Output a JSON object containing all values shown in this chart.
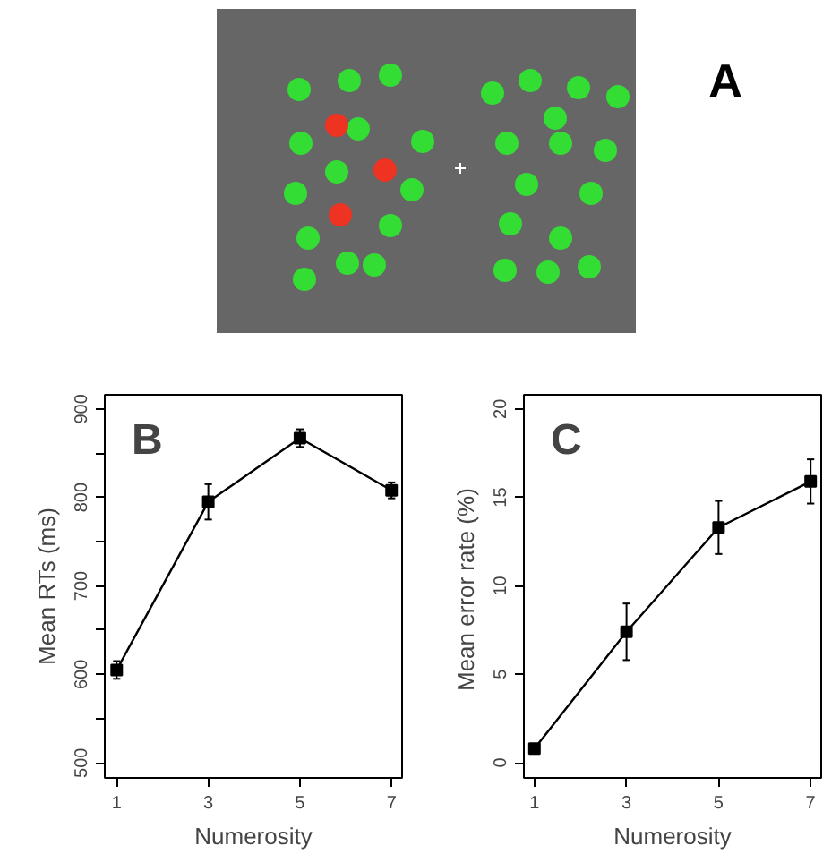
{
  "chart_data": [
    {
      "type": "other",
      "title": "A"
    },
    {
      "type": "line",
      "title": "B",
      "xlabel": "Numerosity",
      "ylabel": "Mean RTs (ms)",
      "x": [
        1,
        3,
        5,
        7
      ],
      "series": [
        {
          "color": "#000000",
          "values": [
            605,
            795,
            867,
            808
          ],
          "errors": [
            10,
            20,
            10,
            9
          ]
        }
      ],
      "xlim": [
        0.74,
        7.23
      ],
      "ylim": [
        483,
        916
      ],
      "xticks": [
        1,
        3,
        5,
        7
      ],
      "yticks": [
        500,
        {
          "value": 550,
          "label": null
        },
        600,
        {
          "value": 650,
          "label": null
        },
        700,
        {
          "value": 750,
          "label": null
        },
        800,
        {
          "value": 850,
          "label": null
        },
        900
      ],
      "marker": "square",
      "line_style": "solid",
      "grid": false
    },
    {
      "type": "line",
      "title": "C",
      "xlabel": "Numerosity",
      "ylabel": "Mean error rate  (%)",
      "x": [
        1,
        3,
        5,
        7
      ],
      "series": [
        {
          "color": "#000000",
          "values": [
            0.8,
            7.4,
            13.3,
            15.9
          ],
          "errors": [
            0.1,
            1.6,
            1.5,
            1.25
          ]
        }
      ],
      "xlim": [
        0.77,
        7.23
      ],
      "ylim": [
        -0.86,
        20.8
      ],
      "xticks": [
        1,
        3,
        5,
        7
      ],
      "yticks": [
        0,
        5,
        10,
        15,
        20
      ],
      "marker": "square",
      "line_style": "solid",
      "grid": false
    }
  ]
}
